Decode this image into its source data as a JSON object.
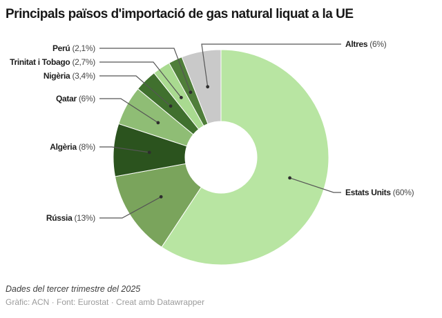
{
  "title": "Principals països d'importació de gas natural liquat a la UE",
  "footer": {
    "note": "Dades del tercer trimestre del 2025",
    "byline": "Gràfic: ACN · Font: Eurostat · Creat amb Datawrapper"
  },
  "chart_data": {
    "type": "pie",
    "donut": true,
    "title": "Principals països d'importació de gas natural liquat a la UE",
    "unit": "%",
    "start_angle_deg": 0,
    "direction": "clockwise",
    "note": "Dades del tercer trimestre del 2025",
    "slices": [
      {
        "label": "Estats Units",
        "value": 60,
        "display_value": "60%",
        "color": "#b8e5a2"
      },
      {
        "label": "Rússia",
        "value": 13,
        "display_value": "13%",
        "color": "#7aa45c"
      },
      {
        "label": "Algèria",
        "value": 8,
        "display_value": "8%",
        "color": "#2b531e"
      },
      {
        "label": "Qatar",
        "value": 6,
        "display_value": "6%",
        "color": "#8fbd75"
      },
      {
        "label": "Nigèria",
        "value": 3.4,
        "display_value": "3,4%",
        "color": "#40702e"
      },
      {
        "label": "Trinitat i Tobago",
        "value": 2.7,
        "display_value": "2,7%",
        "color": "#a9da90"
      },
      {
        "label": "Perú",
        "value": 2.1,
        "display_value": "2,1%",
        "color": "#4f7e3a"
      },
      {
        "label": "Altres",
        "value": 6,
        "display_value": "6%",
        "color": "#c9c9c9"
      }
    ]
  }
}
